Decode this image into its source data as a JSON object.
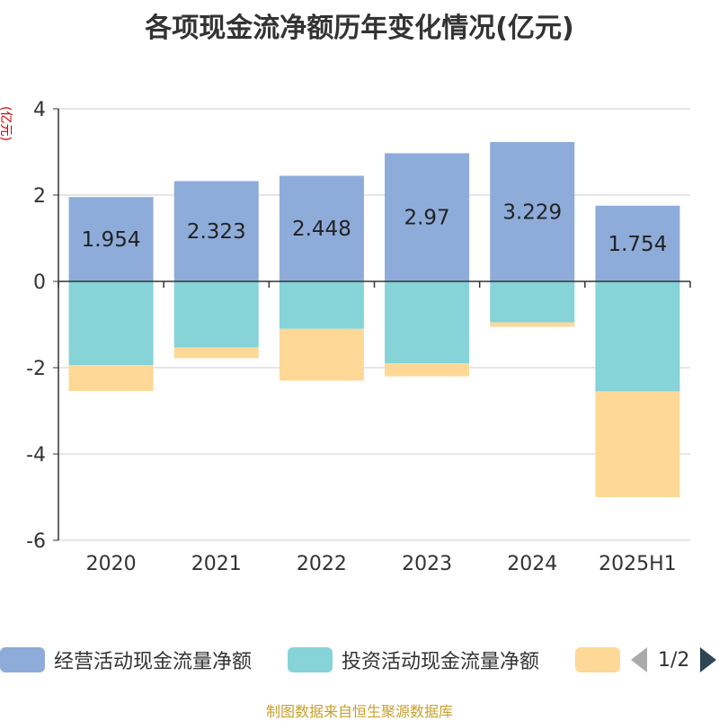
{
  "title": "各项现金流净额历年变化情况(亿元)",
  "y_unit": "(亿元)",
  "source": "制图数据来自恒生聚源数据库",
  "legend": {
    "items": [
      {
        "label": "经营活动现金流量净额",
        "color": "#8eacd9"
      },
      {
        "label": "投资活动现金流量净额",
        "color": "#86d3d8"
      },
      {
        "label": "",
        "color": "#fed896"
      }
    ],
    "page": "1/2"
  },
  "chart_data": {
    "type": "bar",
    "stacked": true,
    "categories": [
      "2020",
      "2021",
      "2022",
      "2023",
      "2024",
      "2025H1"
    ],
    "ylim": [
      -6,
      4
    ],
    "yticks": [
      4,
      2,
      0,
      -2,
      -4,
      -6
    ],
    "grid": true,
    "legend_position": "bottom",
    "series": [
      {
        "name": "经营活动现金流量净额",
        "color": "#8eacd9",
        "values": [
          1.954,
          2.323,
          2.448,
          2.97,
          3.229,
          1.754
        ],
        "labels": [
          "1.954",
          "2.323",
          "2.448",
          "2.97",
          "3.229",
          "1.754"
        ]
      },
      {
        "name": "投资活动现金流量净额",
        "color": "#86d3d8",
        "values": [
          -1.94,
          -1.53,
          -1.1,
          -1.9,
          -0.95,
          -2.55
        ]
      },
      {
        "color": "#fed896",
        "values": [
          -0.6,
          -0.25,
          -1.2,
          -0.3,
          -0.1,
          -2.45
        ]
      }
    ]
  }
}
